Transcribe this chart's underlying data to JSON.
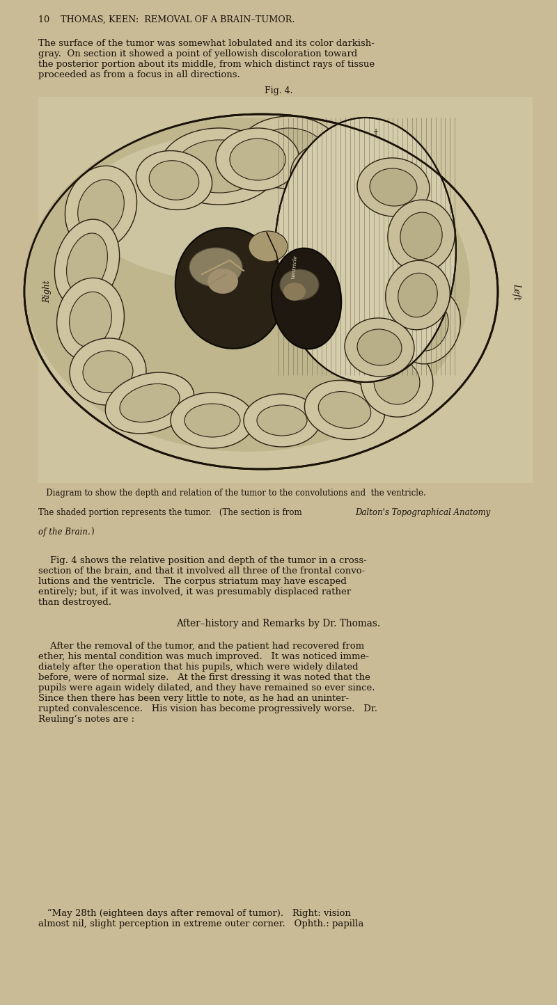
{
  "background_color": "#c9bb96",
  "page_width": 8.0,
  "page_height": 14.44,
  "dpi": 100,
  "text_color": "#1a1208",
  "header_text": "10    THOMAS, KEEN:  REMOVAL OF A BRAIN–TUMOR.",
  "header_fontsize": 9.2,
  "paragraph1": "The surface of the tumor was somewhat lobulated and its color darkish-\ngray.  On section it showed a point of yellowish discoloration toward\nthe posterior portion about its middle, from which distinct rays of tissue\nproceeded as from a focus in all directions.",
  "para1_fontsize": 9.5,
  "fig_caption": "Fig. 4.",
  "fig_caption_fontsize": 9.0,
  "diagram_caption1": "   Diagram to show the depth and relation of the tumor to the convolutions and  the ventricle.",
  "diagram_caption2": "The shaded portion represents the tumor.   (The section is from ",
  "diagram_caption2_italic": "Dalton's Topographical Anatomy",
  "diagram_caption3_italic": "of the Brain.",
  "diagram_caption3_close": ")",
  "diagram_caption_fontsize": 8.5,
  "section_header": "After–history and Remarks by Dr. Thomas.",
  "section_header_fontsize": 9.8,
  "paragraph2": "    After the removal of the tumor, and the patient had recovered from\nether, his mental condition was much improved.   It was noticed imme-\ndiately after the operation that his pupils, which were widely dilated\nbefore, were of normal size.   At the first dressing it was noted that the\npupils were again widely dilated, and they have remained so ever since.\nSince then there has been very little to note, as he had an uninter-\nrupted convalescence.   His vision has become progressively worse.   Dr.\nReuling’s notes are :",
  "para2_fontsize": 9.5,
  "paragraph3": "   “May 28th (eighteen days after removal of tumor).   Right: vision\nalmost nil, slight perception in extreme outer corner.   Ophth.: papilla",
  "para3_fontsize": 9.5,
  "fig4_paragraph": "    Fig. 4 shows the relative position and depth of the tumor in a cross-\nsection of the brain, and that it involved all three of the frontal convo-\nlutions and the ventricle.   The corpus striatum may have escaped\nentirely; but, if it was involved, it was presumably displaced rather\nthan destroyed.",
  "fig4_fontsize": 9.5
}
